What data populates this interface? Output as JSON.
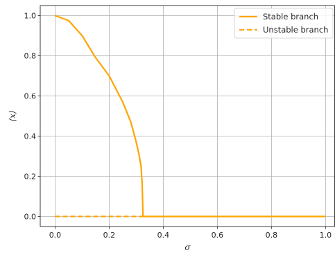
{
  "chart_data": {
    "type": "line",
    "xlabel": "σ",
    "ylabel": "⟨x⟩",
    "xlim": [
      -0.055,
      1.035
    ],
    "ylim": [
      -0.05,
      1.05
    ],
    "xticks": [
      0.0,
      0.2,
      0.4,
      0.6,
      0.8,
      1.0
    ],
    "yticks": [
      0.0,
      0.2,
      0.4,
      0.6,
      0.8,
      1.0
    ],
    "xtick_labels": [
      "0.0",
      "0.2",
      "0.4",
      "0.6",
      "0.8",
      "1.0"
    ],
    "ytick_labels": [
      "0.0",
      "0.2",
      "0.4",
      "0.6",
      "0.8",
      "1.0"
    ],
    "grid": true,
    "legend_position": "top-right",
    "series": [
      {
        "name": "Stable branch",
        "style": "solid",
        "color": "#FFA500",
        "x": [
          0.0,
          0.05,
          0.1,
          0.15,
          0.2,
          0.25,
          0.28,
          0.3,
          0.31,
          0.318,
          0.322,
          0.325,
          0.4,
          0.6,
          0.8,
          1.0
        ],
        "y": [
          1.0,
          0.975,
          0.9,
          0.79,
          0.7,
          0.57,
          0.47,
          0.37,
          0.31,
          0.25,
          0.16,
          0.0,
          0.0,
          0.0,
          0.0,
          0.0
        ]
      },
      {
        "name": "Unstable branch",
        "style": "dashed",
        "color": "#FFA500",
        "x": [
          0.0,
          0.325
        ],
        "y": [
          0.0,
          0.0
        ]
      }
    ]
  }
}
